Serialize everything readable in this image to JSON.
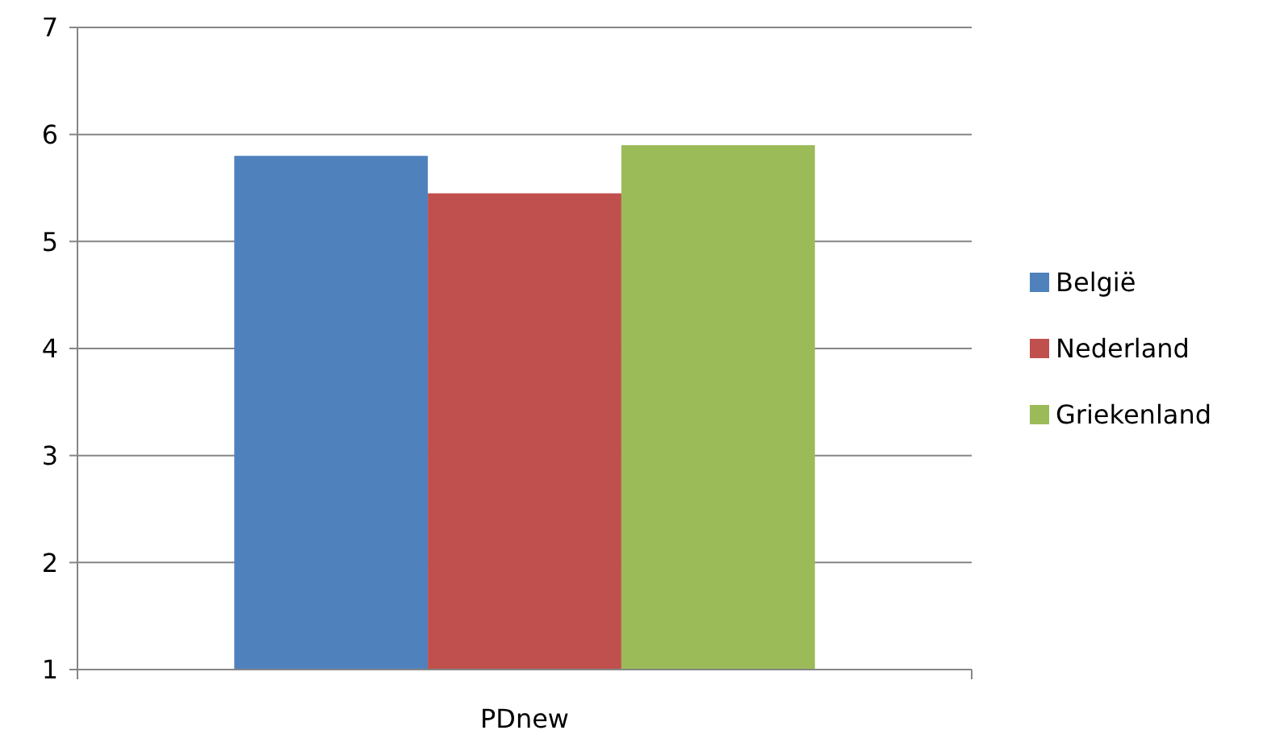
{
  "chart_data": {
    "type": "bar",
    "categories": [
      "PDnew"
    ],
    "series": [
      {
        "name": "België",
        "color": "#4f81bd",
        "values": [
          5.8
        ]
      },
      {
        "name": "Nederland",
        "color": "#c0504d",
        "values": [
          5.45
        ]
      },
      {
        "name": "Griekenland",
        "color": "#9bbb59",
        "values": [
          5.9
        ]
      }
    ],
    "ylim": [
      1,
      7
    ],
    "yticks": [
      1,
      2,
      3,
      4,
      5,
      6,
      7
    ],
    "grid": "y",
    "legend": "right"
  }
}
